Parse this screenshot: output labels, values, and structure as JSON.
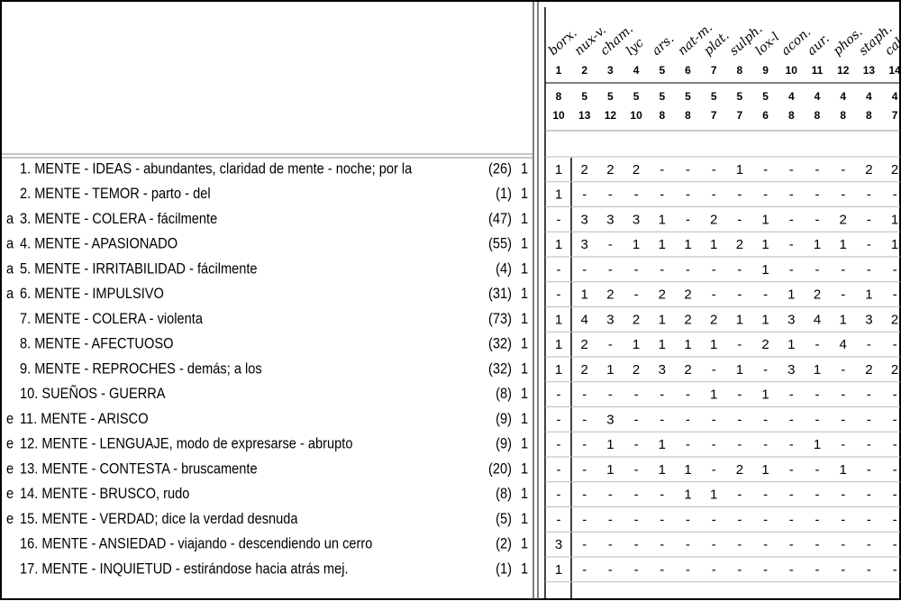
{
  "columns": [
    {
      "remedy": "borx.",
      "number": 1,
      "score1": 8,
      "score2": 10
    },
    {
      "remedy": "nux-v.",
      "number": 2,
      "score1": 5,
      "score2": 13
    },
    {
      "remedy": "cham.",
      "number": 3,
      "score1": 5,
      "score2": 12
    },
    {
      "remedy": "lyc",
      "number": 4,
      "score1": 5,
      "score2": 10
    },
    {
      "remedy": "ars.",
      "number": 5,
      "score1": 5,
      "score2": 8
    },
    {
      "remedy": "nat-m.",
      "number": 6,
      "score1": 5,
      "score2": 8
    },
    {
      "remedy": "plat.",
      "number": 7,
      "score1": 5,
      "score2": 7
    },
    {
      "remedy": "sulph.",
      "number": 8,
      "score1": 5,
      "score2": 7
    },
    {
      "remedy": "lox-l",
      "number": 9,
      "score1": 5,
      "score2": 6
    },
    {
      "remedy": "acon.",
      "number": 10,
      "score1": 4,
      "score2": 8
    },
    {
      "remedy": "aur.",
      "number": 11,
      "score1": 4,
      "score2": 8
    },
    {
      "remedy": "phos.",
      "number": 12,
      "score1": 4,
      "score2": 8
    },
    {
      "remedy": "staph.",
      "number": 13,
      "score1": 4,
      "score2": 8
    },
    {
      "remedy": "calc.",
      "number": 14,
      "score1": 4,
      "score2": 7
    }
  ],
  "rows": [
    {
      "text": "1. MENTE - IDEAS - abundantes, claridad de mente - noche; por la",
      "count": "(26)",
      "weight": 1,
      "cells": [
        1,
        2,
        2,
        2,
        "-",
        "-",
        "-",
        1,
        "-",
        "-",
        "-",
        "-",
        2,
        2
      ]
    },
    {
      "text": "2. MENTE - TEMOR - parto - del",
      "count": "(1)",
      "weight": 1,
      "cells": [
        1,
        "-",
        "-",
        "-",
        "-",
        "-",
        "-",
        "-",
        "-",
        "-",
        "-",
        "-",
        "-",
        "-"
      ]
    },
    {
      "prefix": "a",
      "text": "3. MENTE - COLERA - fácilmente",
      "count": "(47)",
      "weight": 1,
      "cells": [
        "-",
        3,
        3,
        3,
        1,
        "-",
        2,
        "-",
        1,
        "-",
        "-",
        2,
        "-",
        1
      ]
    },
    {
      "prefix": "a",
      "text": "4. MENTE - APASIONADO",
      "count": "(55)",
      "weight": 1,
      "cells": [
        1,
        3,
        "-",
        1,
        1,
        1,
        1,
        2,
        1,
        "-",
        1,
        1,
        "-",
        1
      ]
    },
    {
      "prefix": "a",
      "text": "5. MENTE - IRRITABILIDAD - fácilmente",
      "count": "(4)",
      "weight": 1,
      "cells": [
        "-",
        "-",
        "-",
        "-",
        "-",
        "-",
        "-",
        "-",
        1,
        "-",
        "-",
        "-",
        "-",
        "-"
      ]
    },
    {
      "prefix": "a",
      "text": "6. MENTE - IMPULSIVO",
      "count": "(31)",
      "weight": 1,
      "cells": [
        "-",
        1,
        2,
        "-",
        2,
        2,
        "-",
        "-",
        "-",
        1,
        2,
        "-",
        1,
        "-"
      ]
    },
    {
      "text": "7. MENTE - COLERA - violenta",
      "count": "(73)",
      "weight": 1,
      "cells": [
        1,
        4,
        3,
        2,
        1,
        2,
        2,
        1,
        1,
        3,
        4,
        1,
        3,
        2
      ]
    },
    {
      "text": "8. MENTE - AFECTUOSO",
      "count": "(32)",
      "weight": 1,
      "cells": [
        1,
        2,
        "-",
        1,
        1,
        1,
        1,
        "-",
        2,
        1,
        "-",
        4,
        "-",
        "-"
      ]
    },
    {
      "text": "9. MENTE - REPROCHES - demás; a los",
      "count": "(32)",
      "weight": 1,
      "cells": [
        1,
        2,
        1,
        2,
        3,
        2,
        "-",
        1,
        "-",
        3,
        1,
        "-",
        2,
        2
      ]
    },
    {
      "text": "10. SUEÑOS - GUERRA",
      "count": "(8)",
      "weight": 1,
      "cells": [
        "-",
        "-",
        "-",
        "-",
        "-",
        "-",
        1,
        "-",
        1,
        "-",
        "-",
        "-",
        "-",
        "-"
      ]
    },
    {
      "prefix": "e",
      "text": "11. MENTE - ARISCO",
      "count": "(9)",
      "weight": 1,
      "cells": [
        "-",
        "-",
        3,
        "-",
        "-",
        "-",
        "-",
        "-",
        "-",
        "-",
        "-",
        "-",
        "-",
        "-"
      ]
    },
    {
      "prefix": "e",
      "text": "12. MENTE - LENGUAJE, modo de expresarse - abrupto",
      "count": "(9)",
      "weight": 1,
      "cells": [
        "-",
        "-",
        1,
        "-",
        1,
        "-",
        "-",
        "-",
        "-",
        "-",
        1,
        "-",
        "-",
        "-"
      ]
    },
    {
      "prefix": "e",
      "text": "13. MENTE - CONTESTA - bruscamente",
      "count": "(20)",
      "weight": 1,
      "cells": [
        "-",
        "-",
        1,
        "-",
        1,
        1,
        "-",
        2,
        1,
        "-",
        "-",
        1,
        "-",
        "-"
      ]
    },
    {
      "prefix": "e",
      "text": "14. MENTE - BRUSCO, rudo",
      "count": "(8)",
      "weight": 1,
      "cells": [
        "-",
        "-",
        "-",
        "-",
        "-",
        1,
        1,
        "-",
        "-",
        "-",
        "-",
        "-",
        "-",
        "-"
      ]
    },
    {
      "prefix": "e",
      "text": "15. MENTE - VERDAD; dice la verdad desnuda",
      "count": "(5)",
      "weight": 1,
      "cells": [
        "-",
        "-",
        "-",
        "-",
        "-",
        "-",
        "-",
        "-",
        "-",
        "-",
        "-",
        "-",
        "-",
        "-"
      ]
    },
    {
      "text": "16. MENTE - ANSIEDAD - viajando - descendiendo un cerro",
      "count": "(2)",
      "weight": 1,
      "cells": [
        3,
        "-",
        "-",
        "-",
        "-",
        "-",
        "-",
        "-",
        "-",
        "-",
        "-",
        "-",
        "-",
        "-"
      ]
    },
    {
      "text": "17. MENTE - INQUIETUD - estirándose hacia atrás mej.",
      "count": "(1)",
      "weight": 1,
      "cells": [
        1,
        "-",
        "-",
        "-",
        "-",
        "-",
        "-",
        "-",
        "-",
        "-",
        "-",
        "-",
        "-",
        "-"
      ]
    }
  ]
}
